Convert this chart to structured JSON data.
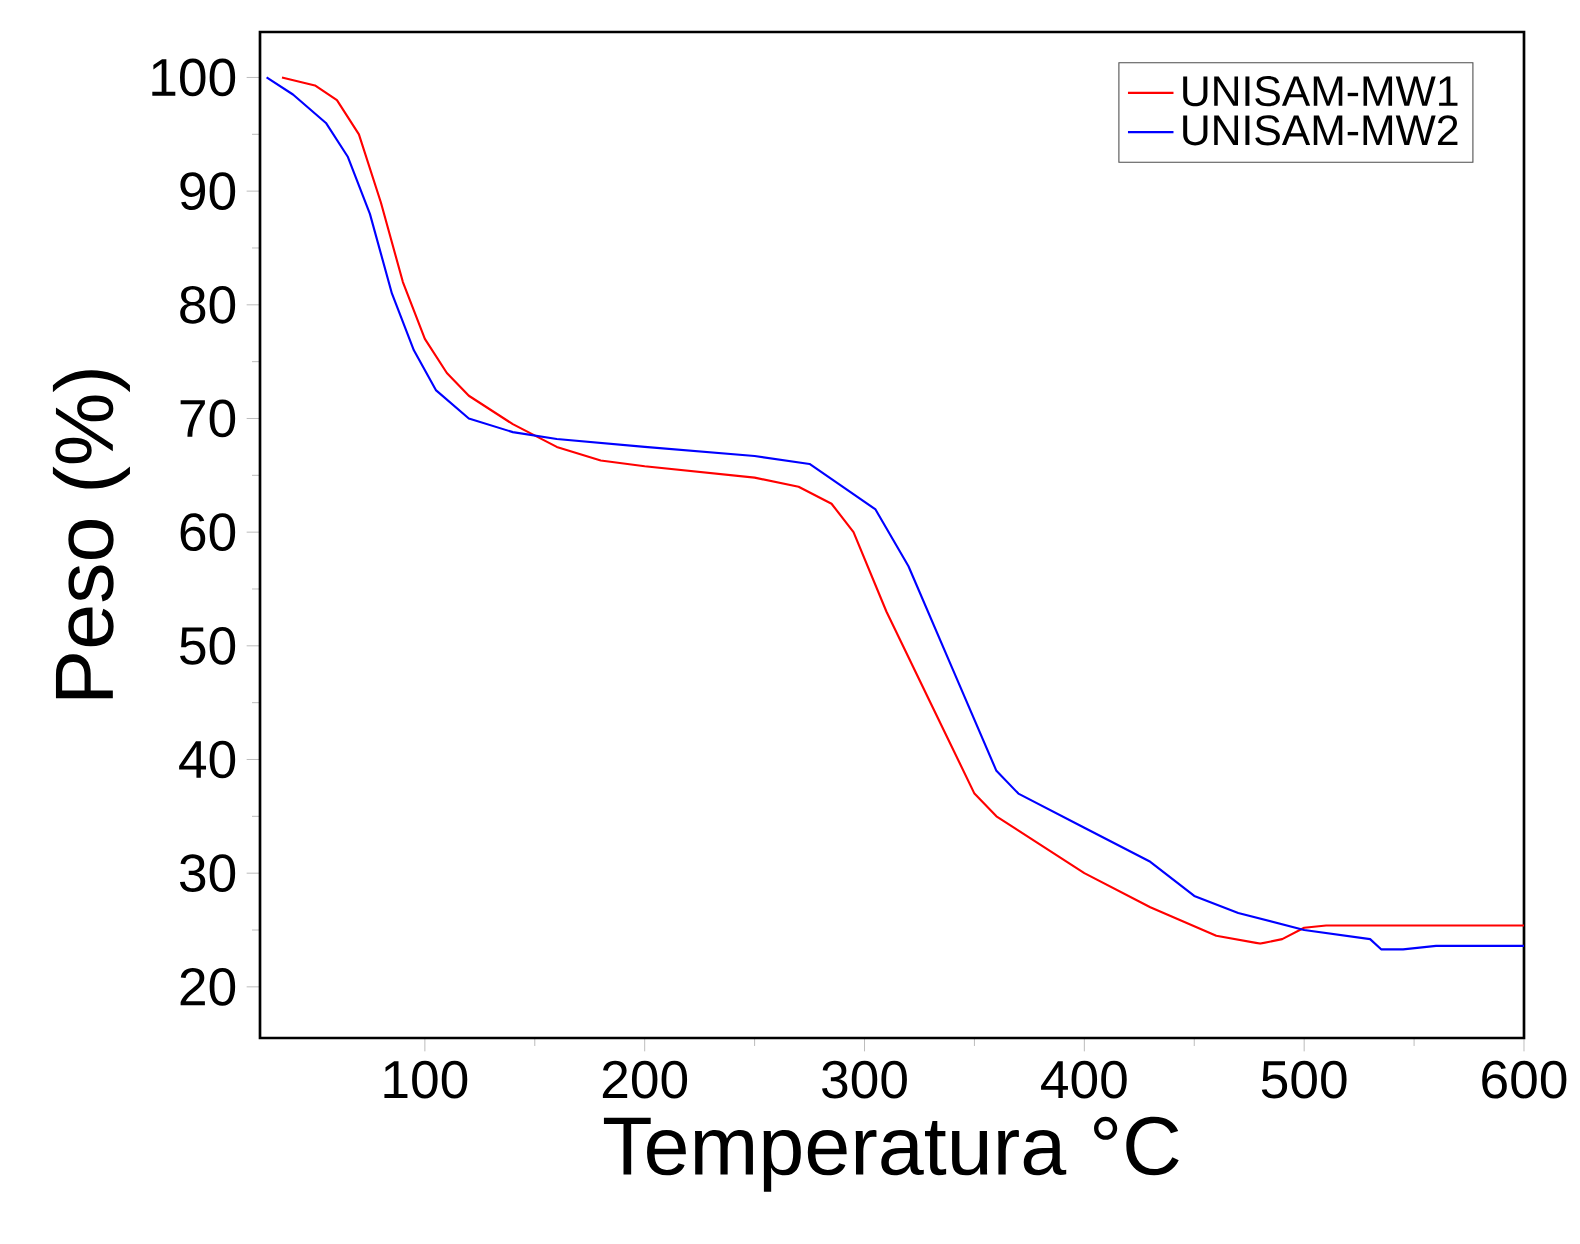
{
  "chart_data": {
    "type": "line",
    "xlabel": "Temperatura °C",
    "ylabel": "Peso (%)",
    "xlim": [
      25,
      600
    ],
    "ylim": [
      15.5,
      104
    ],
    "xticks": [
      100,
      200,
      300,
      400,
      500,
      600
    ],
    "yticks": [
      20,
      30,
      40,
      50,
      60,
      70,
      80,
      90,
      100
    ],
    "legend": "top right",
    "grid": false,
    "marker": "none",
    "line_style": "solid",
    "series": [
      {
        "name": "UNISAM-MW1",
        "color": "#ff0000",
        "x": [
          35,
          50,
          60,
          70,
          80,
          90,
          100,
          110,
          120,
          140,
          160,
          180,
          200,
          250,
          270,
          285,
          295,
          310,
          330,
          350,
          360,
          380,
          400,
          430,
          460,
          480,
          490,
          500,
          510,
          600
        ],
        "values": [
          100,
          99.3,
          98,
          95,
          89,
          82,
          77,
          74,
          72,
          69.5,
          67.5,
          66.3,
          65.8,
          64.8,
          64,
          62.5,
          60,
          53,
          45,
          37,
          35,
          32.5,
          30,
          27,
          24.5,
          23.8,
          24.2,
          25.2,
          25.4,
          25.4
        ]
      },
      {
        "name": "UNISAM-MW2",
        "color": "#0000ff",
        "x": [
          28,
          40,
          55,
          65,
          75,
          85,
          95,
          105,
          120,
          140,
          160,
          200,
          250,
          275,
          290,
          305,
          320,
          340,
          360,
          370,
          400,
          430,
          450,
          470,
          500,
          530,
          535,
          545,
          560,
          600
        ],
        "values": [
          100,
          98.5,
          96,
          93,
          88,
          81,
          76,
          72.5,
          70,
          68.8,
          68.2,
          67.5,
          66.7,
          66,
          64,
          62,
          57,
          48,
          39,
          37,
          34,
          31,
          28,
          26.5,
          25,
          24.2,
          23.3,
          23.3,
          23.6,
          23.6
        ]
      }
    ]
  }
}
